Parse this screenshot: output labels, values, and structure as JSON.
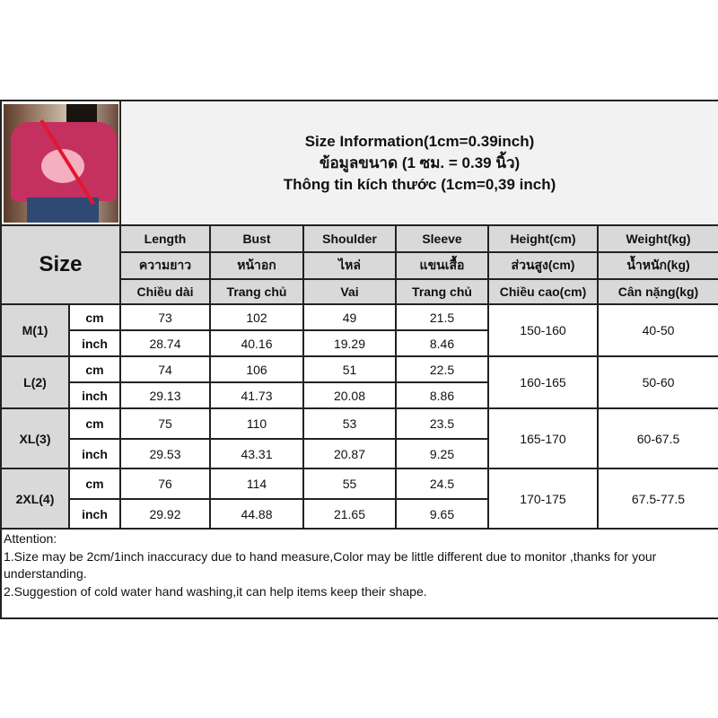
{
  "title": {
    "line1": "Size Information(1cm=0.39inch)",
    "line2": "ข้อมูลขนาด (1 ซม. = 0.39 นิ้ว)",
    "line3": "Thông tin kích thước (1cm=0,39 inch)"
  },
  "size_label": "Size",
  "columns": [
    {
      "en": "Length",
      "th": "ความยาว",
      "vi": "Chiều dài"
    },
    {
      "en": "Bust",
      "th": "หน้าอก",
      "vi": "Trang chủ"
    },
    {
      "en": "Shoulder",
      "th": "ไหล่",
      "vi": "Vai"
    },
    {
      "en": "Sleeve",
      "th": "แขนเสื้อ",
      "vi": "Trang chủ"
    },
    {
      "en": "Height(cm)",
      "th": "ส่วนสูง(cm)",
      "vi": "Chiều cao(cm)"
    },
    {
      "en": "Weight(kg)",
      "th": "น้ำหนัก(kg)",
      "vi": "Cân nặng(kg)"
    }
  ],
  "rows": [
    {
      "size": "M(1)",
      "cm_label": "cm",
      "inch_label": "inch",
      "cm": [
        "73",
        "102",
        "49",
        "21.5"
      ],
      "inch": [
        "28.74",
        "40.16",
        "19.29",
        "8.46"
      ],
      "height": "150-160",
      "weight": "40-50"
    },
    {
      "size": "L(2)",
      "cm_label": "cm",
      "inch_label": "inch",
      "cm": [
        "74",
        "106",
        "51",
        "22.5"
      ],
      "inch": [
        "29.13",
        "41.73",
        "20.08",
        "8.86"
      ],
      "height": "160-165",
      "weight": "50-60"
    },
    {
      "size": "XL(3)",
      "cm_label": "cm",
      "inch_label": "inch",
      "cm": [
        "75",
        "110",
        "53",
        "23.5"
      ],
      "inch": [
        "29.53",
        "43.31",
        "20.87",
        "9.25"
      ],
      "height": "165-170",
      "weight": "60-67.5"
    },
    {
      "size": "2XL(4)",
      "cm_label": "cm",
      "inch_label": "inch",
      "cm": [
        "76",
        "114",
        "55",
        "24.5"
      ],
      "inch": [
        "29.92",
        "44.88",
        "21.65",
        "9.65"
      ],
      "height": "170-175",
      "weight": "67.5-77.5"
    }
  ],
  "attention": {
    "heading": "Attention:",
    "line1": "1.Size may be 2cm/1inch inaccuracy due to hand measure,Color may be little different due to monitor ,thanks for your understanding.",
    "line2": "2.Suggestion of cold water hand washing,it can help items keep their shape."
  },
  "colors": {
    "header_gray": "#d9d9d9",
    "title_bg": "#f2f2f2",
    "shirt": "#c4305f"
  }
}
